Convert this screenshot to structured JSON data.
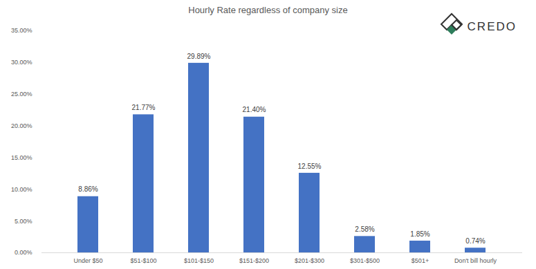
{
  "chart_data": {
    "type": "bar",
    "title": "Hourly Rate regardless of company size",
    "annotations": [
      "CREDO"
    ],
    "categories": [
      "Under $50",
      "$51-$100",
      "$101-$150",
      "$151-$200",
      "$201-$300",
      "$301-$500",
      "$501+",
      "Don't bill hourly"
    ],
    "values": [
      8.86,
      21.77,
      29.89,
      21.4,
      12.55,
      2.58,
      1.85,
      0.74
    ],
    "value_labels": [
      "8.86%",
      "21.77%",
      "29.89%",
      "21.40%",
      "12.55%",
      "2.58%",
      "1.85%",
      "0.74%"
    ],
    "color": "#4472c4",
    "ylim": [
      0,
      35
    ],
    "yticks": [
      {
        "value": 0,
        "label": "0.00%"
      },
      {
        "value": 5,
        "label": "5.00%"
      },
      {
        "value": 10,
        "label": "10.00%"
      },
      {
        "value": 15,
        "label": "15.00%"
      },
      {
        "value": 20,
        "label": "20.00%"
      },
      {
        "value": 25,
        "label": "25.00%"
      },
      {
        "value": 30,
        "label": "30.00%"
      },
      {
        "value": 35,
        "label": "35.00%"
      }
    ],
    "grid": false,
    "data_labels": true
  }
}
